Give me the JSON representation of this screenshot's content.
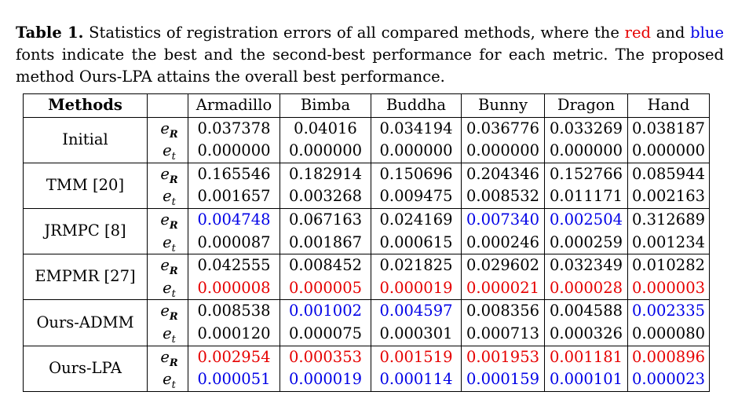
{
  "caption": {
    "label": "Table 1.",
    "text_1": " Statistics of registration errors of all compared methods, where the ",
    "red_word": "red",
    "text_2": " and ",
    "blue_word": "blue",
    "text_3": " fonts indicate the best and the second-best performance for each metric. The proposed method Ours-LPA attains the overall best performance."
  },
  "colors": {
    "best": "#e60000",
    "second_best": "#0000e6"
  },
  "table": {
    "header": [
      "Methods",
      "",
      "Armadillo",
      "Bimba",
      "Buddha",
      "Bunny",
      "Dragon",
      "Hand"
    ],
    "metric_symbols": {
      "rotation": {
        "base": "e",
        "sub": "R"
      },
      "translation": {
        "base": "e",
        "sub": "t"
      }
    },
    "groups": [
      {
        "method": "Initial",
        "rows": [
          {
            "values": [
              "0.037378",
              "0.04016",
              "0.034194",
              "0.036776",
              "0.033269",
              "0.038187"
            ],
            "colors": [
              "",
              "",
              "",
              "",
              "",
              ""
            ]
          },
          {
            "values": [
              "0.000000",
              "0.000000",
              "0.000000",
              "0.000000",
              "0.000000",
              "0.000000"
            ],
            "colors": [
              "",
              "",
              "",
              "",
              "",
              ""
            ]
          }
        ]
      },
      {
        "method": "TMM [20]",
        "rows": [
          {
            "values": [
              "0.165546",
              "0.182914",
              "0.150696",
              "0.204346",
              "0.152766",
              "0.085944"
            ],
            "colors": [
              "",
              "",
              "",
              "",
              "",
              ""
            ]
          },
          {
            "values": [
              "0.001657",
              "0.003268",
              "0.009475",
              "0.008532",
              "0.011171",
              "0.002163"
            ],
            "colors": [
              "",
              "",
              "",
              "",
              "",
              ""
            ]
          }
        ]
      },
      {
        "method": "JRMPC [8]",
        "rows": [
          {
            "values": [
              "0.004748",
              "0.067163",
              "0.024169",
              "0.007340",
              "0.002504",
              "0.312689"
            ],
            "colors": [
              "blue",
              "",
              "",
              "blue",
              "blue",
              ""
            ]
          },
          {
            "values": [
              "0.000087",
              "0.001867",
              "0.000615",
              "0.000246",
              "0.000259",
              "0.001234"
            ],
            "colors": [
              "",
              "",
              "",
              "",
              "",
              ""
            ]
          }
        ]
      },
      {
        "method": "EMPMR [27]",
        "rows": [
          {
            "values": [
              "0.042555",
              "0.008452",
              "0.021825",
              "0.029602",
              "0.032349",
              "0.010282"
            ],
            "colors": [
              "",
              "",
              "",
              "",
              "",
              ""
            ]
          },
          {
            "values": [
              "0.000008",
              "0.000005",
              "0.000019",
              "0.000021",
              "0.000028",
              "0.000003"
            ],
            "colors": [
              "red",
              "red",
              "red",
              "red",
              "red",
              "red"
            ]
          }
        ]
      },
      {
        "method": "Ours-ADMM",
        "rows": [
          {
            "values": [
              "0.008538",
              "0.001002",
              "0.004597",
              "0.008356",
              "0.004588",
              "0.002335"
            ],
            "colors": [
              "",
              "blue",
              "blue",
              "",
              "",
              "blue"
            ]
          },
          {
            "values": [
              "0.000120",
              "0.000075",
              "0.000301",
              "0.000713",
              "0.000326",
              "0.000080"
            ],
            "colors": [
              "",
              "",
              "",
              "",
              "",
              ""
            ]
          }
        ]
      },
      {
        "method": "Ours-LPA",
        "rows": [
          {
            "values": [
              "0.002954",
              "0.000353",
              "0.001519",
              "0.001953",
              "0.001181",
              "0.000896"
            ],
            "colors": [
              "red",
              "red",
              "red",
              "red",
              "red",
              "red"
            ]
          },
          {
            "values": [
              "0.000051",
              "0.000019",
              "0.000114",
              "0.000159",
              "0.000101",
              "0.000023"
            ],
            "colors": [
              "blue",
              "blue",
              "blue",
              "blue",
              "blue",
              "blue"
            ]
          }
        ]
      }
    ]
  }
}
